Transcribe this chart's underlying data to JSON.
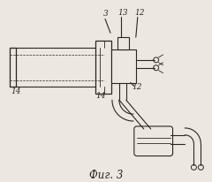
{
  "bg_color": "#ede8df",
  "line_color": "#2a2520",
  "lw": 0.8,
  "fig_caption": "Фиг. 3"
}
